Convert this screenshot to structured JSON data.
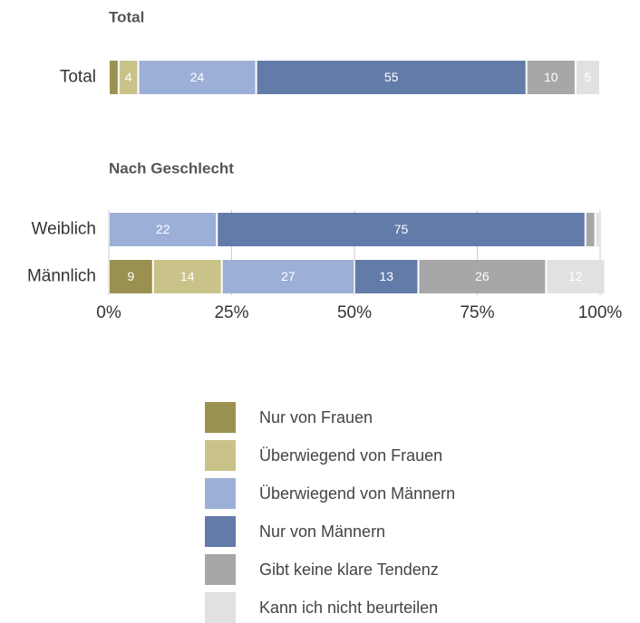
{
  "chart_data": {
    "type": "bar",
    "orientation": "horizontal",
    "stacked": true,
    "panels": [
      {
        "title": "Total",
        "categories": [
          "Total"
        ]
      },
      {
        "title": "Nach Geschlecht",
        "categories": [
          "Weiblich",
          "Männlich"
        ]
      }
    ],
    "series": [
      {
        "name": "Nur von Frauen",
        "color": "#9a9150",
        "values": [
          2,
          0,
          9
        ]
      },
      {
        "name": "Überwiegend von Frauen",
        "color": "#c9c38a",
        "values": [
          4,
          0,
          14
        ]
      },
      {
        "name": "Überwiegend von Männern",
        "color": "#9cb0d7",
        "values": [
          24,
          22,
          27
        ]
      },
      {
        "name": "Nur von Männern",
        "color": "#627ba9",
        "values": [
          55,
          75,
          13
        ]
      },
      {
        "name": "Gibt keine klare Tendenz",
        "color": "#a7a7a7",
        "values": [
          10,
          2,
          26
        ]
      },
      {
        "name": "Kann ich nicht beurteilen",
        "color": "#e1e1e1",
        "values": [
          5,
          1,
          12
        ]
      }
    ],
    "xlim": [
      0,
      100
    ],
    "xticks": [
      {
        "value": 0,
        "label": "0%"
      },
      {
        "value": 25,
        "label": "25%"
      },
      {
        "value": 50,
        "label": "50%"
      },
      {
        "value": 75,
        "label": "75%"
      },
      {
        "value": 100,
        "label": "100%"
      }
    ]
  }
}
